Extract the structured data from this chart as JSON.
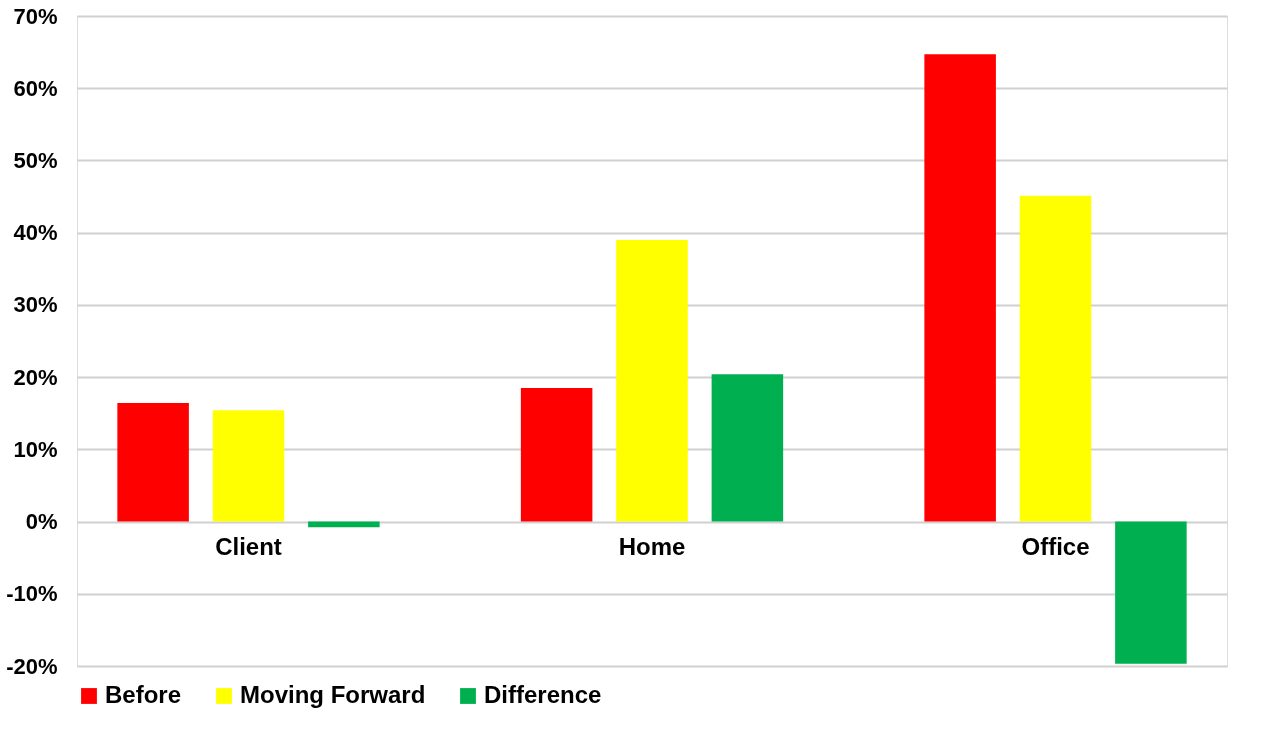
{
  "chart_data": {
    "type": "bar",
    "categories": [
      "Client",
      "Home",
      "Office"
    ],
    "series": [
      {
        "name": "Before",
        "color": "#ff0000",
        "values": [
          16.4,
          18.5,
          64.7
        ]
      },
      {
        "name": "Moving Forward",
        "color": "#ffff00",
        "values": [
          15.4,
          39.0,
          45.1
        ]
      },
      {
        "name": "Difference",
        "color": "#00b050",
        "values": [
          -0.8,
          20.4,
          -19.7
        ]
      }
    ],
    "ylim": [
      -20,
      70
    ],
    "yticks": [
      {
        "value": -20,
        "label": "-20%"
      },
      {
        "value": -10,
        "label": "-10%"
      },
      {
        "value": 0,
        "label": "0%"
      },
      {
        "value": 10,
        "label": "10%"
      },
      {
        "value": 20,
        "label": "20%"
      },
      {
        "value": 30,
        "label": "30%"
      },
      {
        "value": 40,
        "label": "40%"
      },
      {
        "value": 50,
        "label": "50%"
      },
      {
        "value": 60,
        "label": "60%"
      },
      {
        "value": 70,
        "label": "70%"
      }
    ],
    "grid": "y",
    "legend": "bottom"
  }
}
